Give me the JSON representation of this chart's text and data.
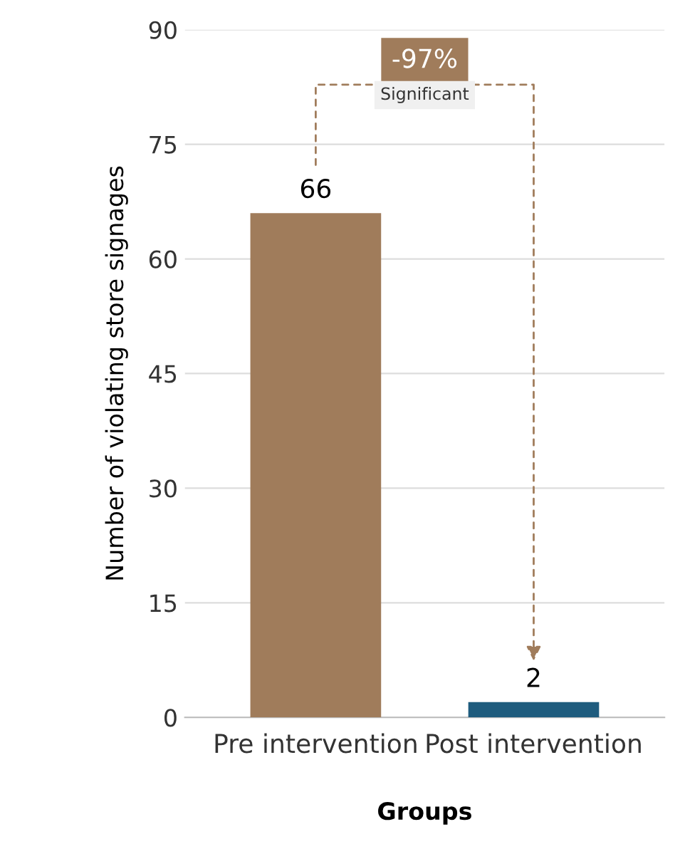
{
  "chart_data": {
    "type": "bar",
    "categories": [
      "Pre intervention",
      "Post intervention"
    ],
    "values": [
      66,
      2
    ],
    "colors": [
      "#a07c5b",
      "#1f5c7e"
    ],
    "ylim": [
      0,
      90
    ],
    "yticks": [
      0,
      15,
      30,
      45,
      60,
      75,
      90
    ],
    "xlabel": "Groups",
    "ylabel": "Number of violating store signages",
    "annotations": [
      "-97%",
      "Significant"
    ],
    "data_labels": true,
    "grid": "y"
  }
}
